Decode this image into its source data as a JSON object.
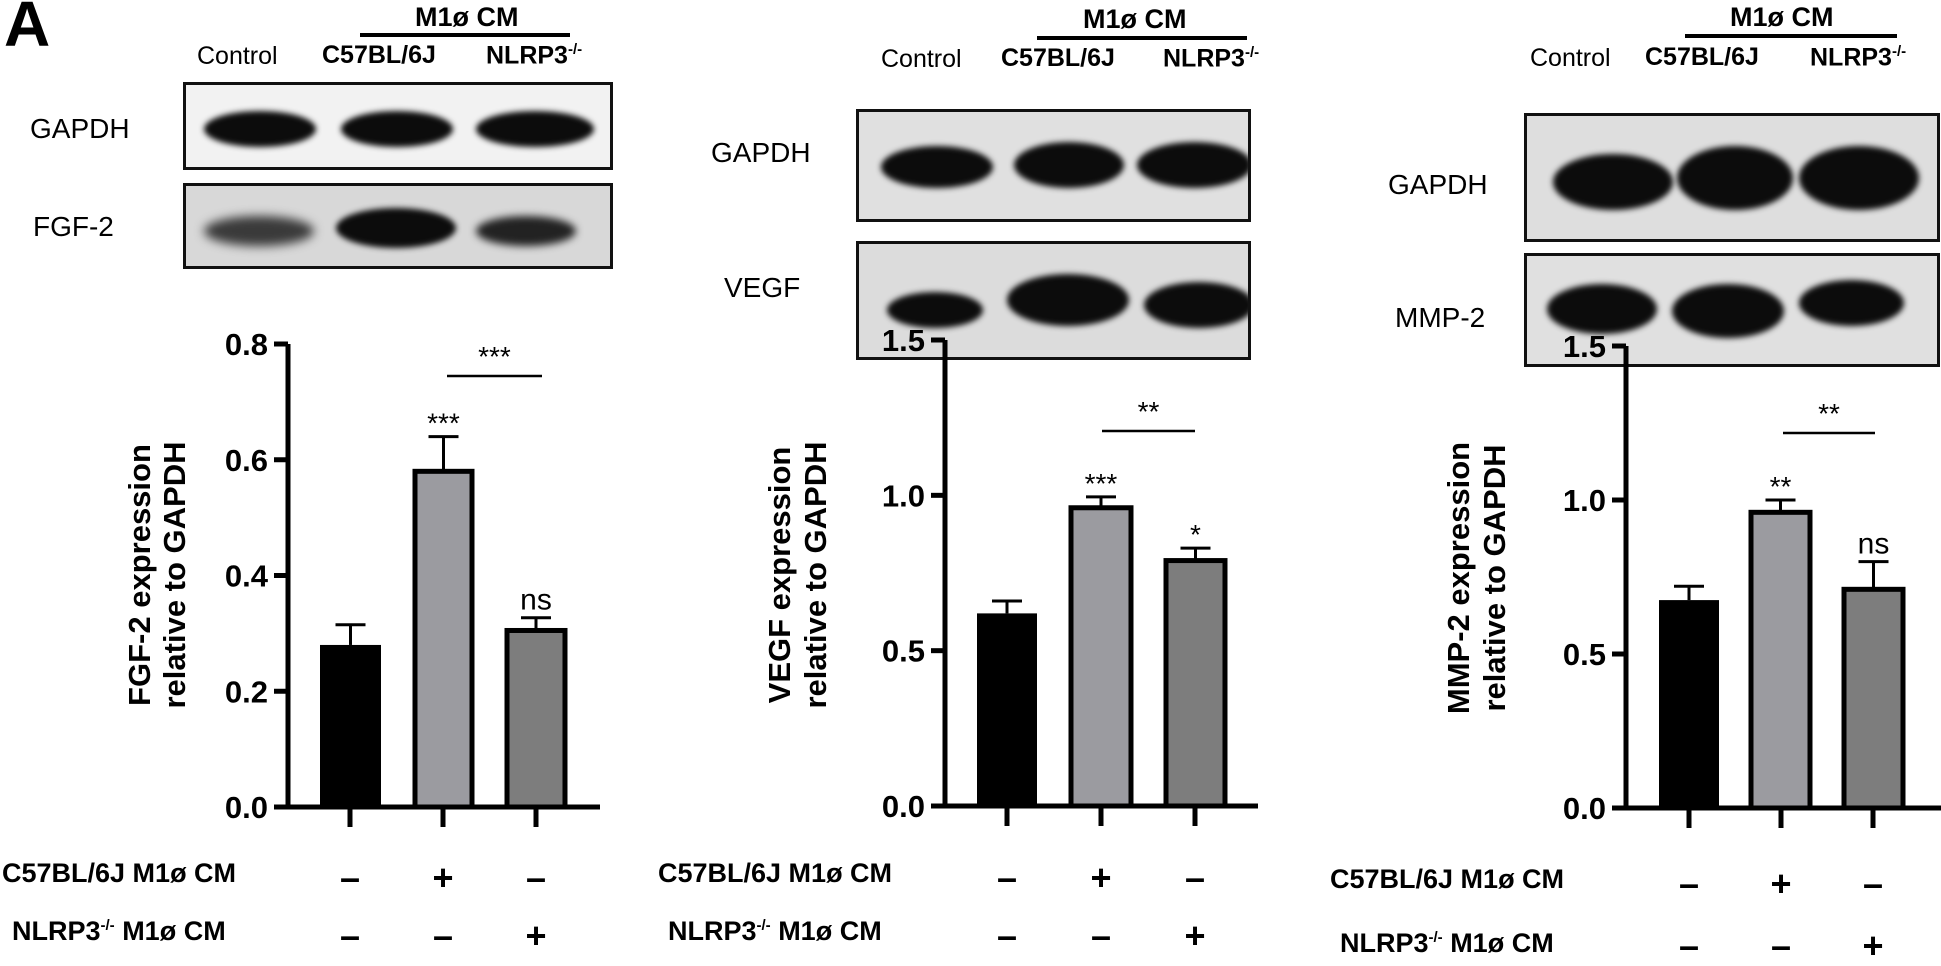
{
  "figure": {
    "panel_letter": "A",
    "group_header": "M1ø CM",
    "lane_labels": [
      "Control",
      "C57BL/6J",
      "NLRP3"
    ],
    "lane_label_superscript": "-/-",
    "treatment_rows": [
      {
        "label": "C57BL/6J M1ø CM",
        "label_main": "C57BL/6J M1ø CM",
        "marks": [
          "–",
          "+",
          "–"
        ]
      },
      {
        "label_main": "NLRP3",
        "label_sup": "-/-",
        "label_tail": " M1ø CM",
        "marks": [
          "–",
          "–",
          "+"
        ]
      }
    ],
    "colors": {
      "control": "#000000",
      "c57": "#9b9ba0",
      "nlrp3": "#7d7d7d",
      "axis": "#000000"
    }
  },
  "blots": [
    {
      "loading_label": "GAPDH",
      "target_label": "FGF-2"
    },
    {
      "loading_label": "GAPDH",
      "target_label": "VEGF"
    },
    {
      "loading_label": "GAPDH",
      "target_label": "MMP-2"
    }
  ],
  "chart_data": [
    {
      "type": "bar",
      "title": "",
      "categories": [
        "Control",
        "C57BL/6J M1ø CM",
        "NLRP3-/- M1ø CM"
      ],
      "values": [
        0.28,
        0.58,
        0.305
      ],
      "errors": [
        0.035,
        0.06,
        0.022
      ],
      "ylabel": "FGF-2  expression relative to GAPDH",
      "ylabel_line1": "FGF-2  expression",
      "ylabel_line2": "relative to GAPDH",
      "xlabel": "",
      "ylim": [
        0,
        0.8
      ],
      "yticks": [
        0.0,
        0.2,
        0.4,
        0.6,
        0.8
      ],
      "ytick_labels": [
        "0.0",
        "0.2",
        "0.4",
        "0.6",
        "0.8"
      ],
      "bar_annotations": [
        "",
        "***",
        "ns"
      ],
      "comparison": {
        "between": [
          1,
          2
        ],
        "label": "***"
      },
      "grid": false,
      "legend": "none"
    },
    {
      "type": "bar",
      "title": "",
      "categories": [
        "Control",
        "C57BL/6J M1ø CM",
        "NLRP3-/- M1ø CM"
      ],
      "values": [
        0.62,
        0.96,
        0.79
      ],
      "errors": [
        0.04,
        0.035,
        0.04
      ],
      "ylabel": "VEGF  expression relative to GAPDH",
      "ylabel_line1": "VEGF  expression",
      "ylabel_line2": "relative to GAPDH",
      "xlabel": "",
      "ylim": [
        0,
        1.5
      ],
      "yticks": [
        0.0,
        0.5,
        1.0,
        1.5
      ],
      "ytick_labels": [
        "0.0",
        "0.5",
        "1.0",
        "1.5"
      ],
      "bar_annotations": [
        "",
        "***",
        "*"
      ],
      "comparison": {
        "between": [
          1,
          2
        ],
        "label": "**"
      },
      "grid": false,
      "legend": "none"
    },
    {
      "type": "bar",
      "title": "",
      "categories": [
        "Control",
        "C57BL/6J M1ø CM",
        "NLRP3-/- M1ø CM"
      ],
      "values": [
        0.675,
        0.96,
        0.71
      ],
      "errors": [
        0.045,
        0.04,
        0.09
      ],
      "ylabel": "MMP-2 expression relative to GAPDH",
      "ylabel_line1": "MMP-2 expression",
      "ylabel_line2": "relative to GAPDH",
      "xlabel": "",
      "ylim": [
        0,
        1.5
      ],
      "yticks": [
        0.0,
        0.5,
        1.0,
        1.5
      ],
      "ytick_labels": [
        "0.0",
        "0.5",
        "1.0",
        "1.5"
      ],
      "bar_annotations": [
        "",
        "**",
        "ns"
      ],
      "comparison": {
        "between": [
          1,
          2
        ],
        "label": "**"
      },
      "grid": false,
      "legend": "none"
    }
  ]
}
